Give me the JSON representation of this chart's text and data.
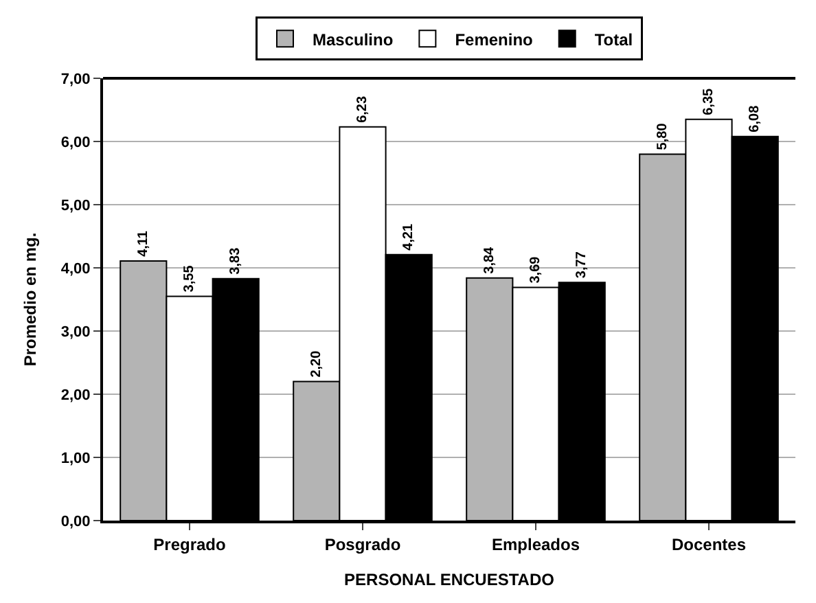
{
  "chart_data": {
    "type": "bar",
    "xlabel": "PERSONAL ENCUESTADO",
    "ylabel": "Promedio en mg.",
    "categories": [
      "Pregrado",
      "Posgrado",
      "Empleados",
      "Docentes"
    ],
    "series": [
      {
        "name": "Masculino",
        "color": "#b4b4b4",
        "values": [
          4.11,
          2.2,
          3.84,
          5.8
        ],
        "value_labels": [
          "4,11",
          "2,20",
          "3,84",
          "5,80"
        ]
      },
      {
        "name": "Femenino",
        "color": "#ffffff",
        "values": [
          3.55,
          6.23,
          3.69,
          6.35
        ],
        "value_labels": [
          "3,55",
          "6,23",
          "3,69",
          "6,35"
        ]
      },
      {
        "name": "Total",
        "color": "#000000",
        "values": [
          3.83,
          4.21,
          3.77,
          6.08
        ],
        "value_labels": [
          "3,83",
          "4,21",
          "3,77",
          "6,08"
        ]
      }
    ],
    "ylim": [
      0,
      7
    ],
    "yticks": [
      {
        "value": 0,
        "label": "0,00"
      },
      {
        "value": 1,
        "label": "1,00"
      },
      {
        "value": 2,
        "label": "2,00"
      },
      {
        "value": 3,
        "label": "3,00"
      },
      {
        "value": 4,
        "label": "4,00"
      },
      {
        "value": 5,
        "label": "5,00"
      },
      {
        "value": 6,
        "label": "6,00"
      },
      {
        "value": 7,
        "label": "7,00"
      }
    ],
    "grid": "y",
    "legend": "top"
  }
}
